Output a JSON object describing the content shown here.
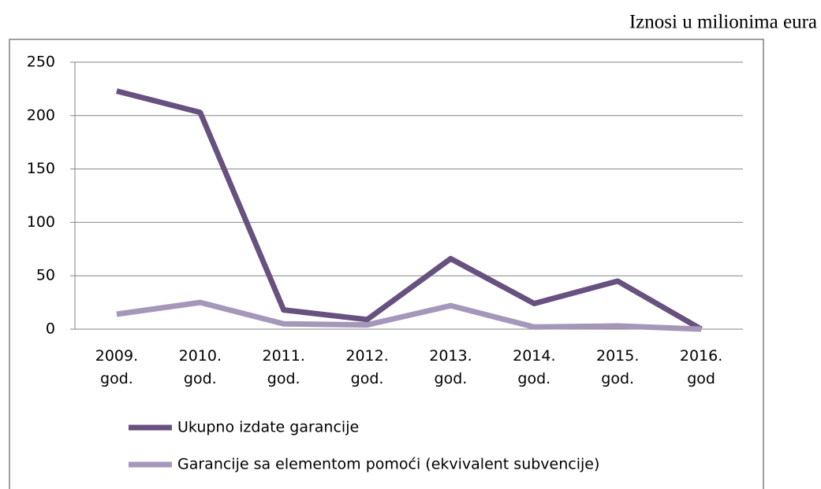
{
  "chart_data": {
    "type": "line",
    "subtitle": "Iznosi u milionima eura",
    "categories": [
      "2009. god.",
      "2010. god.",
      "2011. god.",
      "2012. god.",
      "2013. god.",
      "2014. god.",
      "2015. god.",
      "2016. god"
    ],
    "series": [
      {
        "name": "Ukupno izdate garancije",
        "color": "#67517f",
        "values": [
          223,
          203,
          18,
          9,
          66,
          24,
          45,
          0
        ]
      },
      {
        "name": "Garancije sa elementom pomoći (ekvivalent subvencije)",
        "color": "#a597b9",
        "values": [
          14,
          25,
          5,
          4,
          22,
          2,
          3,
          0
        ]
      }
    ],
    "ylim": [
      0,
      250
    ],
    "yticks": [
      0,
      50,
      100,
      150,
      200,
      250
    ],
    "grid": true,
    "legend": "bottom"
  }
}
